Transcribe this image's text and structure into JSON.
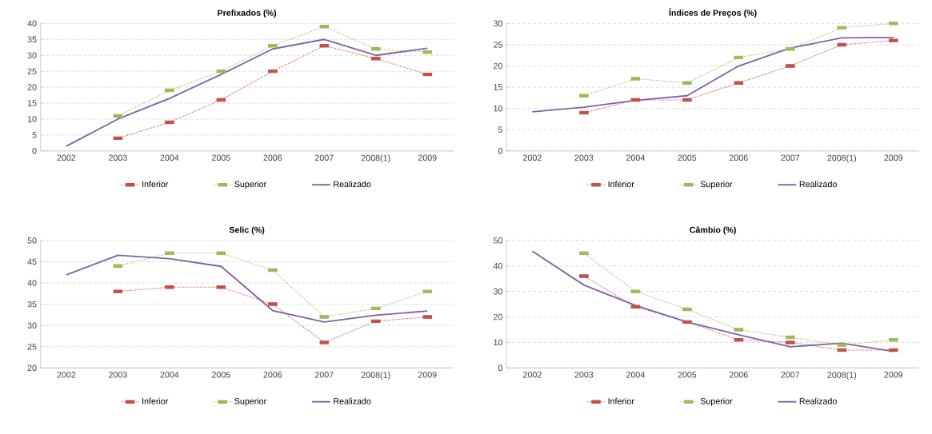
{
  "chart_data": [
    {
      "type": "line",
      "title": "Prefixados (%)",
      "categories": [
        "2002",
        "2003",
        "2004",
        "2005",
        "2006",
        "2007",
        "2008(1)",
        "2009"
      ],
      "ylim": [
        0,
        40
      ],
      "yticks": [
        0,
        5,
        10,
        15,
        20,
        25,
        30,
        35,
        40
      ],
      "grid": "y",
      "legend": "bottom",
      "series": [
        {
          "name": "Inferior",
          "color": "#c0504d",
          "line_style": "dotted",
          "marker": "square",
          "values": [
            null,
            4,
            9,
            16,
            25,
            33,
            29,
            24
          ]
        },
        {
          "name": "Superior",
          "color": "#9bbb59",
          "line_style": "dotted",
          "marker": "square",
          "values": [
            null,
            11,
            19,
            25,
            33,
            39,
            32,
            31
          ]
        },
        {
          "name": "Realizado",
          "color": "#8064a2",
          "line_style": "solid",
          "marker": "none",
          "values": [
            1.5,
            10,
            16.5,
            24,
            32,
            35,
            30,
            32.2
          ]
        }
      ]
    },
    {
      "type": "line",
      "title": "Índices de Preços (%)",
      "categories": [
        "2002",
        "2003",
        "2004",
        "2005",
        "2006",
        "2007",
        "2008(1)",
        "2009"
      ],
      "ylim": [
        0,
        30
      ],
      "yticks": [
        0,
        5,
        10,
        15,
        20,
        25,
        30
      ],
      "grid": "y",
      "legend": "bottom",
      "series": [
        {
          "name": "Inferior",
          "color": "#c0504d",
          "line_style": "dotted",
          "marker": "square",
          "values": [
            null,
            9,
            12,
            12,
            16,
            20,
            25,
            26
          ]
        },
        {
          "name": "Superior",
          "color": "#9bbb59",
          "line_style": "dotted",
          "marker": "square",
          "values": [
            null,
            13,
            17,
            16,
            22,
            24,
            29,
            30
          ]
        },
        {
          "name": "Realizado",
          "color": "#8064a2",
          "line_style": "solid",
          "marker": "none",
          "values": [
            9.2,
            10.3,
            11.9,
            13,
            20,
            24.2,
            26.6,
            26.7
          ]
        }
      ]
    },
    {
      "type": "line",
      "title": "Selic (%)",
      "categories": [
        "2002",
        "2003",
        "2004",
        "2005",
        "2006",
        "2007",
        "2008(1)",
        "2009"
      ],
      "ylim": [
        20,
        50
      ],
      "yticks": [
        20,
        25,
        30,
        35,
        40,
        45,
        50
      ],
      "grid": "y",
      "legend": "bottom",
      "series": [
        {
          "name": "Inferior",
          "color": "#c0504d",
          "line_style": "dotted",
          "marker": "square",
          "values": [
            null,
            38,
            39,
            39,
            35,
            26,
            31,
            32
          ]
        },
        {
          "name": "Superior",
          "color": "#9bbb59",
          "line_style": "dotted",
          "marker": "square",
          "values": [
            null,
            44,
            47,
            47,
            43,
            32,
            34,
            38
          ]
        },
        {
          "name": "Realizado",
          "color": "#8064a2",
          "line_style": "solid",
          "marker": "none",
          "values": [
            41.9,
            46.5,
            45.7,
            43.9,
            33.5,
            30.8,
            32.4,
            33.4
          ]
        }
      ]
    },
    {
      "type": "line",
      "title": "Câmbio (%)",
      "categories": [
        "2002",
        "2003",
        "2004",
        "2005",
        "2006",
        "2007",
        "2008(1)",
        "2009"
      ],
      "ylim": [
        0,
        50
      ],
      "yticks": [
        0,
        10,
        20,
        30,
        40,
        50
      ],
      "grid": "y",
      "legend": "bottom",
      "series": [
        {
          "name": "Inferior",
          "color": "#c0504d",
          "line_style": "dotted",
          "marker": "square",
          "values": [
            null,
            36,
            24,
            18,
            11,
            10,
            7,
            7
          ]
        },
        {
          "name": "Superior",
          "color": "#9bbb59",
          "line_style": "dotted",
          "marker": "square",
          "values": [
            null,
            45,
            30,
            23,
            15,
            12,
            9,
            11
          ]
        },
        {
          "name": "Realizado",
          "color": "#8064a2",
          "line_style": "solid",
          "marker": "none",
          "values": [
            45.8,
            32.5,
            24.5,
            18,
            13,
            8.3,
            9.7,
            6.5
          ]
        }
      ]
    }
  ]
}
